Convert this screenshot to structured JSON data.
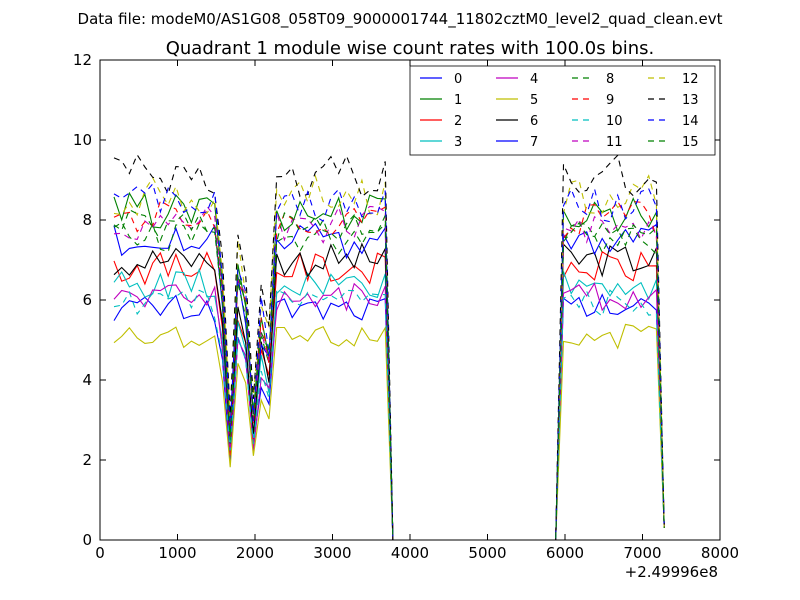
{
  "chart_data": {
    "type": "line",
    "suptitle": "Data file: modeM0/AS1G08_058T09_9000001744_11802cztM0_level2_quad_clean.evt",
    "title": "Quadrant 1 module wise count rates with 100.0s bins.",
    "xlabel": "",
    "ylabel": "",
    "xlim": [
      0,
      8000
    ],
    "ylim": [
      0,
      12
    ],
    "x_offset_label": "+2.49996e8",
    "x_ticks": [
      "0",
      "1000",
      "2000",
      "3000",
      "4000",
      "5000",
      "6000",
      "7000",
      "8000"
    ],
    "y_ticks": [
      "0",
      "2",
      "4",
      "6",
      "8",
      "10",
      "12"
    ],
    "grid": false,
    "legend_position": "top-right",
    "x": [
      180,
      280,
      380,
      480,
      580,
      680,
      780,
      880,
      980,
      1080,
      1180,
      1280,
      1380,
      1480,
      1580,
      1680,
      1780,
      1880,
      1980,
      2080,
      2180,
      2280,
      2380,
      2480,
      2580,
      2680,
      2780,
      2880,
      2980,
      3080,
      3180,
      3280,
      3380,
      3480,
      3580,
      3680,
      3780,
      3880,
      3980,
      4080,
      4180,
      4280,
      4380,
      4480,
      4580,
      4680,
      4780,
      4880,
      4980,
      5080,
      5180,
      5280,
      5380,
      5480,
      5580,
      5680,
      5780,
      5880,
      5980,
      6080,
      6180,
      6280,
      6380,
      6480,
      6580,
      6680,
      6780,
      6880,
      6980,
      7080,
      7180,
      7280
    ],
    "series": [
      {
        "name": "0",
        "color": "#0000ff",
        "dash": false
      },
      {
        "name": "1",
        "color": "#008000",
        "dash": false
      },
      {
        "name": "2",
        "color": "#ff0000",
        "dash": false
      },
      {
        "name": "3",
        "color": "#00bfbf",
        "dash": false
      },
      {
        "name": "4",
        "color": "#bf00bf",
        "dash": false
      },
      {
        "name": "5",
        "color": "#bfbf00",
        "dash": false
      },
      {
        "name": "6",
        "color": "#000000",
        "dash": false
      },
      {
        "name": "7",
        "color": "#0000ff",
        "dash": false
      },
      {
        "name": "8",
        "color": "#008000",
        "dash": true
      },
      {
        "name": "9",
        "color": "#ff0000",
        "dash": true
      },
      {
        "name": "10",
        "color": "#00bfbf",
        "dash": true
      },
      {
        "name": "11",
        "color": "#bf00bf",
        "dash": true
      },
      {
        "name": "12",
        "color": "#bfbf00",
        "dash": true
      },
      {
        "name": "13",
        "color": "#000000",
        "dash": true
      },
      {
        "name": "14",
        "color": "#0000ff",
        "dash": true
      },
      {
        "name": "15",
        "color": "#008000",
        "dash": true
      }
    ],
    "levels": {
      "0": 5.8,
      "1": 8.2,
      "2": 6.8,
      "3": 6.4,
      "4": 6.1,
      "5": 5.1,
      "6": 7.0,
      "7": 7.5,
      "8": 7.6,
      "9": 8.0,
      "10": 5.9,
      "11": 7.9,
      "12": 8.6,
      "13": 9.1,
      "14": 8.4,
      "15": 7.8
    },
    "dip_profile": [
      0.3,
      0.8,
      0.7,
      0.35,
      0.65,
      0.55
    ],
    "dip_start_x": 1680,
    "gap_range": [
      3780,
      5880
    ],
    "end_value_at_7280": 0.3
  }
}
